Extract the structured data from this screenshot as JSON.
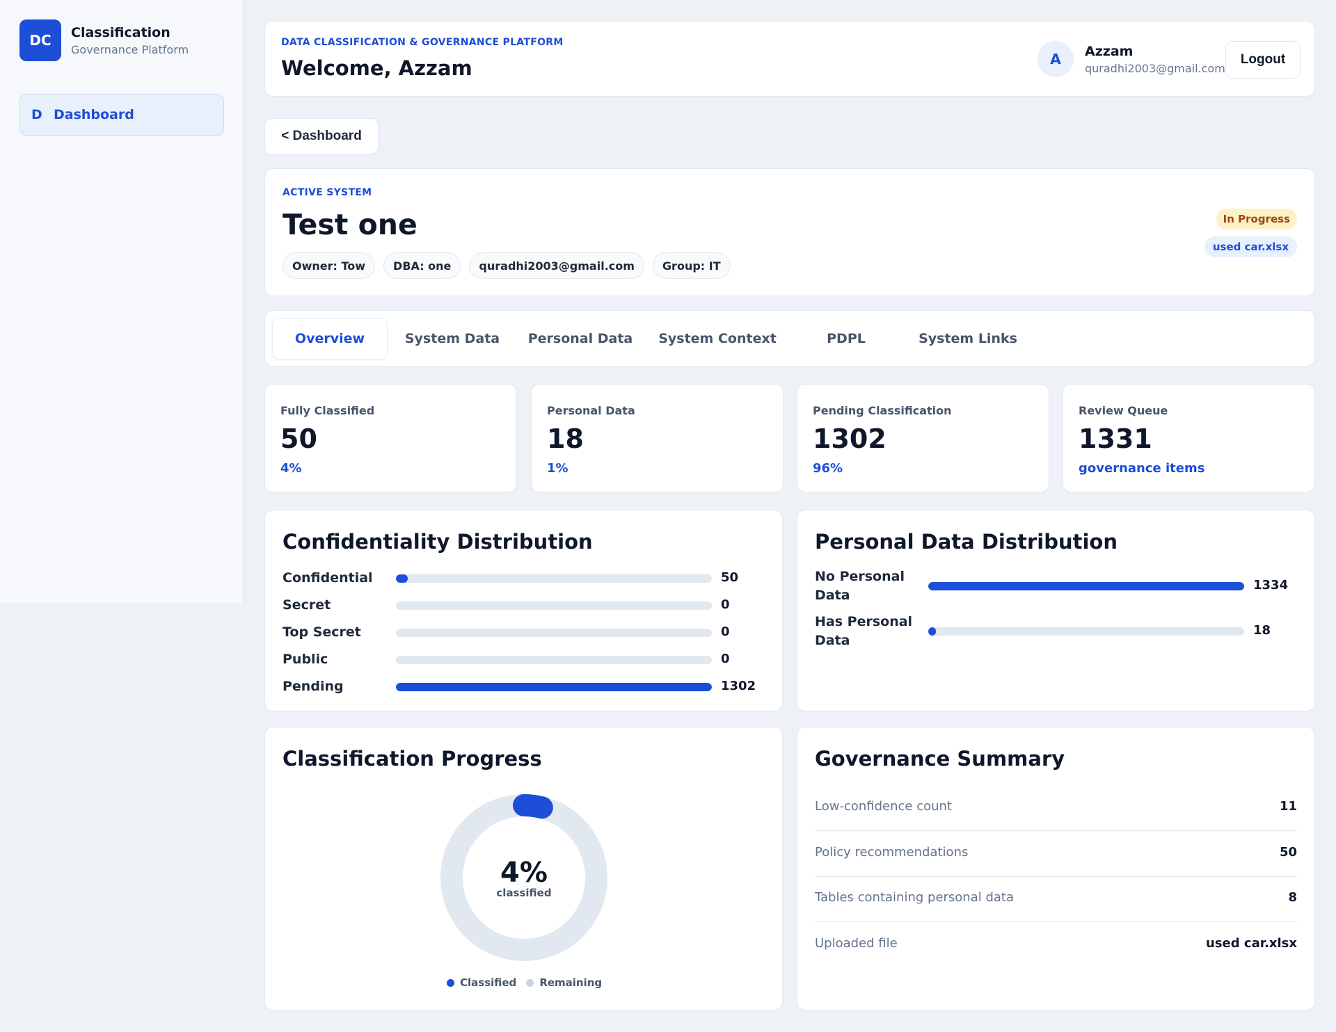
{
  "brand": {
    "logo_text": "DC",
    "title": "Classification",
    "subtitle": "Governance Platform"
  },
  "sidebar": {
    "items": [
      {
        "icon_text": "D",
        "label": "Dashboard",
        "active": true
      }
    ]
  },
  "header": {
    "eyebrow": "DATA CLASSIFICATION & GOVERNANCE PLATFORM",
    "welcome": "Welcome, Azzam",
    "user": {
      "avatar_initial": "A",
      "name": "Azzam",
      "email": "quradhi2003@gmail.com"
    },
    "logout_label": "Logout"
  },
  "back_button_label": "< Dashboard",
  "system": {
    "eyebrow": "ACTIVE SYSTEM",
    "title": "Test one",
    "chips": [
      "Owner: Tow",
      "DBA: one",
      "quradhi2003@gmail.com",
      "Group: IT"
    ],
    "status": "In Progress",
    "file": "used car.xlsx"
  },
  "tabs": [
    {
      "label": "Overview",
      "active": true
    },
    {
      "label": "System Data"
    },
    {
      "label": "Personal Data"
    },
    {
      "label": "System Context"
    },
    {
      "label": "PDPL"
    },
    {
      "label": "System Links"
    }
  ],
  "stats": [
    {
      "label": "Fully Classified",
      "value": "50",
      "sub": "4%"
    },
    {
      "label": "Personal Data",
      "value": "18",
      "sub": "1%"
    },
    {
      "label": "Pending Classification",
      "value": "1302",
      "sub": "96%"
    },
    {
      "label": "Review Queue",
      "value": "1331",
      "sub": "governance items"
    }
  ],
  "confidentiality": {
    "title": "Confidentiality Distribution",
    "rows": [
      {
        "label": "Confidential",
        "value": "50",
        "fraction": 0.038
      },
      {
        "label": "Secret",
        "value": "0",
        "fraction": 0
      },
      {
        "label": "Top Secret",
        "value": "0",
        "fraction": 0
      },
      {
        "label": "Public",
        "value": "0",
        "fraction": 0
      },
      {
        "label": "Pending",
        "value": "1302",
        "fraction": 1.0
      }
    ]
  },
  "personal_distribution": {
    "title": "Personal Data Distribution",
    "rows": [
      {
        "label_line1": "No Personal",
        "label_line2": "Data",
        "value": "1334",
        "fraction": 1.0
      },
      {
        "label_line1": "Has Personal",
        "label_line2": "Data",
        "value": "18",
        "fraction": 0.013
      }
    ]
  },
  "progress": {
    "title": "Classification Progress",
    "percent_text": "4%",
    "caption": "classified",
    "fraction": 0.04,
    "legend": [
      "Classified",
      "Remaining"
    ],
    "colors": {
      "classified": "#1d4ed8",
      "remaining": "#e2e8f0"
    }
  },
  "governance": {
    "title": "Governance Summary",
    "rows": [
      {
        "label": "Low-confidence count",
        "value": "11"
      },
      {
        "label": "Policy recommendations",
        "value": "50"
      },
      {
        "label": "Tables containing personal data",
        "value": "8"
      },
      {
        "label": "Uploaded file",
        "value": "used car.xlsx"
      }
    ]
  },
  "colors": {
    "accent": "#1d4ed8",
    "status_bg": "#fdf1c7",
    "status_text": "#a1480a"
  }
}
